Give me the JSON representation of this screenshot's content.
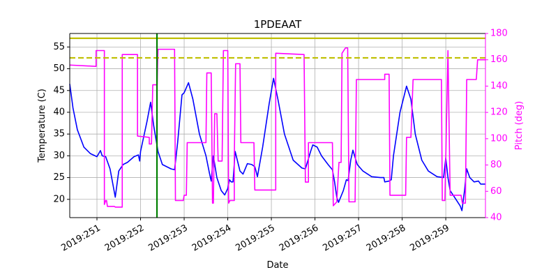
{
  "chart_data": {
    "type": "line",
    "title": "1PDEAAT",
    "xlabel": "Date",
    "ylabel": "Temperature (C)",
    "y2label": "Pitch (deg)",
    "xlim": [
      250.376,
      259.91
    ],
    "ylim": [
      15.8,
      58.1
    ],
    "y2lim": [
      40,
      180
    ],
    "xticks": [
      {
        "value": 251,
        "label": "2019:251"
      },
      {
        "value": 252,
        "label": "2019:252"
      },
      {
        "value": 253,
        "label": "2019:253"
      },
      {
        "value": 254,
        "label": "2019:254"
      },
      {
        "value": 255,
        "label": "2019:255"
      },
      {
        "value": 256,
        "label": "2019:256"
      },
      {
        "value": 257,
        "label": "2019:257"
      },
      {
        "value": 258,
        "label": "2019:258"
      },
      {
        "value": 259,
        "label": "2019:259"
      }
    ],
    "yticks": [
      20,
      25,
      30,
      35,
      40,
      45,
      50,
      55
    ],
    "y2ticks": [
      40,
      60,
      80,
      100,
      120,
      140,
      160,
      180
    ],
    "y2color": "#ff00ff",
    "grid": true,
    "hlines": [
      {
        "value": 57,
        "color": "#bfbf00",
        "style": "solid"
      },
      {
        "value": 52.5,
        "color": "#bfbf00",
        "style": "dashed"
      }
    ],
    "vlines": [
      {
        "value": 252.376,
        "color": "#008000",
        "style": "solid"
      }
    ],
    "series": [
      {
        "color": "#0000ff",
        "axis": "y",
        "x": [
          250.376,
          250.45,
          250.55,
          250.7,
          250.85,
          251.0,
          251.08,
          251.12,
          251.2,
          251.3,
          251.42,
          251.5,
          251.6,
          251.7,
          251.85,
          251.95,
          251.98,
          252.0,
          252.15,
          252.23,
          252.3,
          252.4,
          252.5,
          252.7,
          252.78,
          252.85,
          252.95,
          253.0,
          253.1,
          253.2,
          253.35,
          253.5,
          253.58,
          253.62,
          253.67,
          253.75,
          253.85,
          253.93,
          254.0,
          254.04,
          254.08,
          254.12,
          254.17,
          254.28,
          254.35,
          254.45,
          254.55,
          254.62,
          254.66,
          254.68,
          254.8,
          254.95,
          255.05,
          255.15,
          255.3,
          255.5,
          255.7,
          255.78,
          255.9,
          255.95,
          256.05,
          256.15,
          256.3,
          256.4,
          256.45,
          256.5,
          256.54,
          256.65,
          256.72,
          256.76,
          256.82,
          256.87,
          256.97,
          257.1,
          257.3,
          257.5,
          257.58,
          257.6,
          257.7,
          257.75,
          257.8,
          257.95,
          258.05,
          258.1,
          258.2,
          258.3,
          258.45,
          258.6,
          258.8,
          258.95,
          259.0,
          259.05,
          259.1,
          259.2,
          259.33,
          259.37,
          259.43,
          259.48,
          259.55,
          259.65,
          259.75,
          259.8,
          259.91
        ],
        "values": [
          46.5,
          41,
          36,
          32,
          30.5,
          29.8,
          31.2,
          30,
          29.8,
          27,
          20.5,
          26.5,
          28,
          28.5,
          29.8,
          30.2,
          28.8,
          31,
          38,
          42.3,
          37,
          31,
          28,
          27,
          26.8,
          33,
          44,
          44.5,
          46.8,
          43,
          35,
          30,
          26,
          24.2,
          30,
          25,
          22,
          21,
          22.5,
          24.5,
          24,
          24,
          31,
          26.5,
          25.8,
          28.2,
          28,
          27.5,
          26,
          25.2,
          32,
          42,
          47.8,
          43,
          35,
          29,
          27.2,
          27,
          31,
          32.5,
          32,
          30,
          28,
          26.8,
          24,
          20.5,
          19.3,
          22,
          24.5,
          24.3,
          29,
          31.3,
          28,
          26.5,
          25.2,
          25,
          25,
          24,
          24.2,
          24.5,
          30,
          40,
          44,
          46,
          43,
          35,
          29,
          26.5,
          25.2,
          25,
          29.5,
          25,
          22,
          20.5,
          18.5,
          17.4,
          22,
          27,
          25,
          24,
          24.2,
          23.5,
          23.5
        ]
      },
      {
        "color": "#ff00ff",
        "axis": "y2",
        "x": [
          250.376,
          250.98,
          250.98,
          251.17,
          251.17,
          251.2,
          251.22,
          251.24,
          251.4,
          251.42,
          251.58,
          251.58,
          251.93,
          251.93,
          252.2,
          252.2,
          252.25,
          252.28,
          252.38,
          252.4,
          252.78,
          252.8,
          252.98,
          253.0,
          253.05,
          253.07,
          253.5,
          253.52,
          253.62,
          253.65,
          253.67,
          253.7,
          253.75,
          253.78,
          253.87,
          253.9,
          254.0,
          254.02,
          254.05,
          254.15,
          254.15,
          254.18,
          254.28,
          254.3,
          254.6,
          254.62,
          255.1,
          255.1,
          255.75,
          255.78,
          255.85,
          255.85,
          256.4,
          256.42,
          256.5,
          256.55,
          256.6,
          256.62,
          256.7,
          256.75,
          256.78,
          256.92,
          256.95,
          257.6,
          257.6,
          257.7,
          257.72,
          258.08,
          258.1,
          258.2,
          258.25,
          258.9,
          258.92,
          258.98,
          259.05,
          259.1,
          259.35,
          259.38,
          259.45,
          259.48,
          259.7,
          259.73,
          259.91
        ],
        "values": [
          156,
          155,
          167,
          167,
          50,
          53,
          53,
          48.5,
          48.5,
          48,
          48,
          164,
          164,
          102,
          101,
          96,
          96,
          141,
          141,
          168,
          168,
          53,
          53,
          57,
          57,
          97,
          97,
          150,
          150,
          51,
          51,
          119,
          119,
          83,
          83,
          167,
          167,
          51,
          53,
          53,
          85,
          157,
          157,
          97,
          97,
          61,
          61,
          165,
          164,
          67,
          67,
          97,
          97,
          49,
          52,
          82,
          82,
          165,
          169,
          169,
          52,
          52,
          145,
          145,
          149,
          149,
          57,
          57,
          101,
          101,
          145,
          145,
          53,
          53,
          167,
          57,
          57,
          51,
          51,
          145,
          145,
          160,
          160
        ]
      }
    ]
  }
}
